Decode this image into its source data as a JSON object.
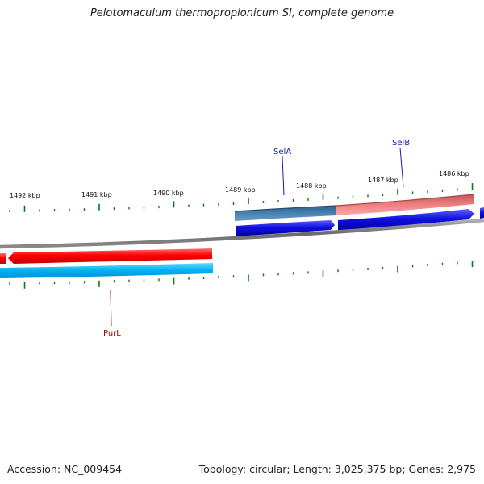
{
  "title": "Pelotomaculum thermopropionicum SI, complete genome",
  "footer": {
    "accession": "Accession: NC_009454",
    "topology": "Topology: circular; Length: 3,025,375 bp; Genes: 2,975"
  },
  "axis": {
    "tick_labels": [
      "1492 kbp",
      "1491 kbp",
      "1490 kbp",
      "1489 kbp",
      "1488 kbp",
      "1487 kbp",
      "1486 kbp"
    ]
  },
  "genes": [
    {
      "name": "PurL",
      "strand": "reverse",
      "label_color": "#a00000"
    },
    {
      "name": "SelA",
      "strand": "forward",
      "label_color": "#1a1ab0"
    },
    {
      "name": "SelB",
      "strand": "forward",
      "label_color": "#1a1ab0"
    }
  ],
  "colors": {
    "backbone": "#7a7a7a",
    "cds_forward": "#1010e0",
    "cds_reverse": "#f00000",
    "gene_forward_steel": "#4682b4",
    "gene_forward_pink": "#f08080",
    "gene_reverse_cyan": "#00b0f0",
    "gc_tick": "#0a7a0a",
    "label_blue": "#1a1ab0",
    "label_red": "#a00000"
  }
}
